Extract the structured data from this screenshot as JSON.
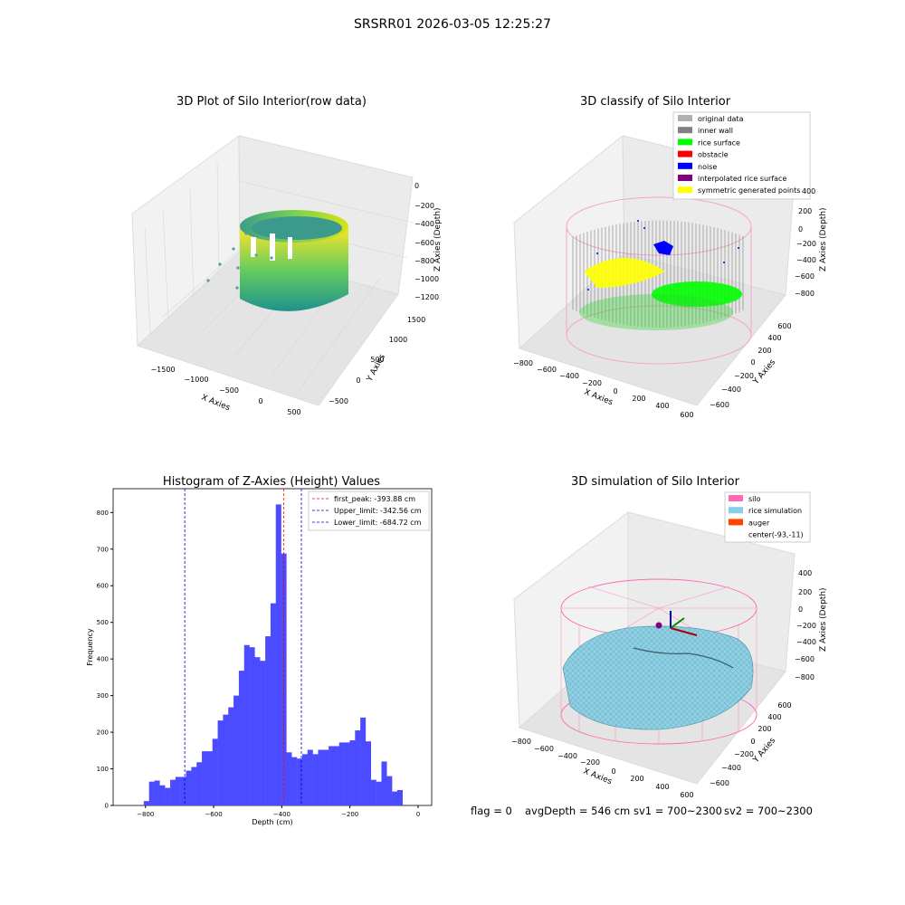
{
  "figure": {
    "suptitle": "SRSRR01 2026-03-05 12:25:27",
    "status": {
      "flag": "flag = 0",
      "avg_depth": "avgDepth = 546 cm",
      "sv1": "sv1 = 700~2300",
      "sv2": "sv2 = 700~2300"
    }
  },
  "chart_data": [
    {
      "type": "scatter",
      "title": "3D Plot of Silo Interior(row data)",
      "xlabel": "X Axies",
      "ylabel": "Y Axies",
      "zlabel": "Z Axies (Depth)",
      "x_ticks": [
        "−1500",
        "−1000",
        "−500",
        "0",
        "500"
      ],
      "y_ticks": [
        "−500",
        "0",
        "500",
        "1000",
        "1500"
      ],
      "z_ticks": [
        "0",
        "−200",
        "−400",
        "−600",
        "−800",
        "−1000",
        "−1200"
      ],
      "xlim": [
        -1800,
        600
      ],
      "ylim": [
        -600,
        1500
      ],
      "zlim": [
        -1300,
        0
      ],
      "colormap": [
        "#440154",
        "#3b528b",
        "#21918c",
        "#5ec962",
        "#fde725"
      ]
    },
    {
      "type": "scatter",
      "title": "3D classify of Silo Interior",
      "xlabel": "X Axies",
      "ylabel": "Y Axies",
      "zlabel": "Z Axies (Depth)",
      "x_ticks": [
        "−800",
        "−600",
        "−400",
        "−200",
        "0",
        "200",
        "400",
        "600"
      ],
      "y_ticks": [
        "−600",
        "−400",
        "−200",
        "0",
        "200",
        "400",
        "600"
      ],
      "z_ticks": [
        "400",
        "200",
        "0",
        "−200",
        "−400",
        "−600",
        "−800"
      ],
      "legend_position": "top-right",
      "legend": [
        {
          "label": "original data",
          "color": "#b0b0b0"
        },
        {
          "label": "inner wall",
          "color": "#808080"
        },
        {
          "label": "rice surface",
          "color": "#00ff00"
        },
        {
          "label": "obstacle",
          "color": "#ff0000"
        },
        {
          "label": "noise",
          "color": "#0000ff"
        },
        {
          "label": "interpolated rice surface",
          "color": "#800080"
        },
        {
          "label": "symmetric generated points",
          "color": "#ffff00"
        }
      ]
    },
    {
      "type": "bar",
      "title": "Histogram of Z-Axies (Height) Values",
      "xlabel": "Depth (cm)",
      "ylabel": "Frequency",
      "xlim": [
        -895,
        40
      ],
      "ylim": [
        0,
        865
      ],
      "x_ticks": [
        -800,
        -600,
        -400,
        -200,
        0
      ],
      "x_tick_labels": [
        "−800",
        "−600",
        "−400",
        "−200",
        "0"
      ],
      "y_ticks": [
        0,
        100,
        200,
        300,
        400,
        500,
        600,
        700,
        800
      ],
      "bin_start": -805,
      "bin_width": 15.5,
      "values": [
        12,
        65,
        68,
        55,
        48,
        70,
        78,
        78,
        95,
        105,
        118,
        148,
        148,
        182,
        232,
        248,
        268,
        300,
        368,
        438,
        432,
        405,
        395,
        462,
        552,
        822,
        688,
        145,
        132,
        128,
        140,
        152,
        140,
        152,
        152,
        162,
        162,
        172,
        172,
        178,
        205,
        240,
        175,
        70,
        65,
        120,
        80,
        38,
        42
      ],
      "bar_color": "#4b4bff",
      "lines": [
        {
          "label": "first_peak: -393.88 cm",
          "x": -393.88,
          "color": "#ff0000"
        },
        {
          "label": "Upper_limit: -342.56 cm",
          "x": -342.56,
          "color": "#0000cc"
        },
        {
          "label": "Lower_limit: -684.72 cm",
          "x": -684.72,
          "color": "#0000cc"
        }
      ],
      "legend_position": "top-right"
    },
    {
      "type": "scatter",
      "title": "3D simulation of Silo Interior",
      "xlabel": "X Axies",
      "ylabel": "Y Axies",
      "zlabel": "Z Axies (Depth)",
      "x_ticks": [
        "−800",
        "−600",
        "−400",
        "−200",
        "0",
        "200",
        "400",
        "600"
      ],
      "y_ticks": [
        "−600",
        "−400",
        "−200",
        "0",
        "200",
        "400",
        "600"
      ],
      "z_ticks": [
        "400",
        "200",
        "0",
        "−200",
        "−400",
        "−600",
        "−800"
      ],
      "legend_position": "top-right",
      "legend": [
        {
          "label": "silo",
          "color": "#ff69b4"
        },
        {
          "label": "rice simulation",
          "color": "#87ceeb"
        },
        {
          "label": "auger",
          "color": "#ff4500"
        },
        {
          "label": "center(-93,-11)",
          "color": "none"
        }
      ]
    }
  ]
}
